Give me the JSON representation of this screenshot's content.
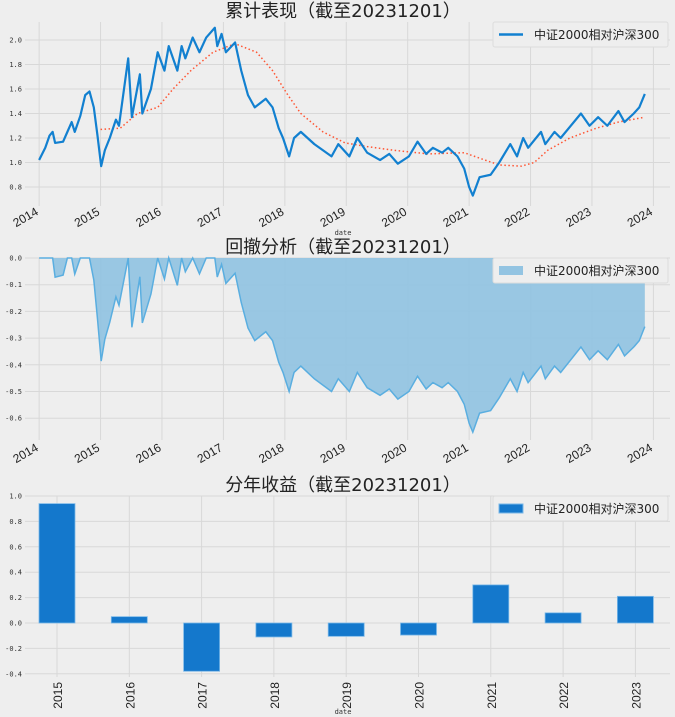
{
  "colors": {
    "line": "#1280d0",
    "ma": "#ff5533",
    "fill": "#93c4e2",
    "fill_line": "#5aaee0",
    "bar": "#1478cc",
    "bar_edge": "#7ab8e8",
    "grid": "#d8d8d8",
    "background": "#eeeeee"
  },
  "chart_data": [
    {
      "type": "line",
      "title": "累计表现（截至20231201）",
      "xlabel": "date",
      "ylabel": "",
      "xlim": [
        2013.77,
        2024.27
      ],
      "ylim": [
        0.66,
        2.16
      ],
      "x_ticks": [
        "2014",
        "2015",
        "2016",
        "2017",
        "2018",
        "2019",
        "2020",
        "2021",
        "2022",
        "2023",
        "2024"
      ],
      "y_ticks": [
        "0.8",
        "1.0",
        "1.2",
        "1.4",
        "1.6",
        "1.8",
        "2.0"
      ],
      "grid": true,
      "legend": {
        "position": "top-right",
        "entries": [
          "中证2000相对沪深300"
        ]
      },
      "series": [
        {
          "name": "中证2000相对沪深300",
          "style": "solid",
          "x": [
            2014.0,
            2014.1,
            2014.17,
            2014.22,
            2014.26,
            2014.39,
            2014.46,
            2014.53,
            2014.58,
            2014.67,
            2014.75,
            2014.82,
            2014.89,
            2014.95,
            2015.01,
            2015.07,
            2015.15,
            2015.25,
            2015.3,
            2015.45,
            2015.51,
            2015.64,
            2015.68,
            2015.82,
            2015.93,
            2016.04,
            2016.11,
            2016.25,
            2016.32,
            2016.38,
            2016.5,
            2016.61,
            2016.72,
            2016.86,
            2016.9,
            2016.97,
            2017.04,
            2017.19,
            2017.29,
            2017.4,
            2017.51,
            2017.69,
            2017.8,
            2017.9,
            2017.97,
            2018.07,
            2018.15,
            2018.26,
            2018.48,
            2018.76,
            2018.87,
            2019.05,
            2019.18,
            2019.34,
            2019.55,
            2019.7,
            2019.84,
            2020.02,
            2020.16,
            2020.3,
            2020.41,
            2020.56,
            2020.66,
            2020.81,
            2020.92,
            2021.0,
            2021.06,
            2021.17,
            2021.35,
            2021.49,
            2021.67,
            2021.78,
            2021.88,
            2021.96,
            2022.17,
            2022.24,
            2022.39,
            2022.49,
            2022.82,
            2022.96,
            2023.1,
            2023.25,
            2023.43,
            2023.53,
            2023.68,
            2023.77,
            2023.86
          ],
          "y": [
            1.02,
            1.12,
            1.22,
            1.25,
            1.16,
            1.17,
            1.25,
            1.33,
            1.25,
            1.38,
            1.55,
            1.58,
            1.45,
            1.22,
            0.97,
            1.1,
            1.2,
            1.35,
            1.3,
            1.85,
            1.37,
            1.72,
            1.4,
            1.6,
            1.9,
            1.75,
            1.95,
            1.75,
            1.95,
            1.85,
            2.02,
            1.9,
            2.02,
            2.1,
            1.95,
            2.05,
            1.9,
            1.98,
            1.75,
            1.55,
            1.45,
            1.52,
            1.45,
            1.28,
            1.2,
            1.05,
            1.2,
            1.25,
            1.15,
            1.05,
            1.15,
            1.05,
            1.2,
            1.08,
            1.02,
            1.07,
            0.99,
            1.05,
            1.17,
            1.07,
            1.12,
            1.08,
            1.12,
            1.05,
            0.95,
            0.8,
            0.73,
            0.88,
            0.9,
            1.0,
            1.15,
            1.05,
            1.2,
            1.12,
            1.25,
            1.15,
            1.25,
            1.2,
            1.4,
            1.3,
            1.37,
            1.3,
            1.42,
            1.33,
            1.4,
            1.45,
            1.56
          ]
        },
        {
          "name": "moving-average",
          "style": "dotted",
          "x": [
            2015.0,
            2015.32,
            2015.6,
            2015.93,
            2016.18,
            2016.47,
            2016.83,
            2017.19,
            2017.54,
            2017.8,
            2018.05,
            2018.26,
            2018.62,
            2018.98,
            2019.34,
            2019.77,
            2020.34,
            2020.92,
            2021.2,
            2021.49,
            2021.85,
            2022.06,
            2022.28,
            2022.64,
            2023.07,
            2023.43,
            2023.86
          ],
          "y": [
            1.27,
            1.28,
            1.4,
            1.45,
            1.6,
            1.75,
            1.9,
            1.97,
            1.9,
            1.75,
            1.55,
            1.4,
            1.25,
            1.16,
            1.13,
            1.1,
            1.07,
            1.08,
            1.03,
            0.98,
            0.97,
            1.0,
            1.1,
            1.2,
            1.28,
            1.33,
            1.37
          ]
        }
      ]
    },
    {
      "type": "area",
      "title": "回撤分析（截至20231201）",
      "xlabel": "",
      "xlim": [
        2013.77,
        2024.27
      ],
      "ylim": [
        -0.685,
        0.0
      ],
      "x_ticks": [
        "2014",
        "2015",
        "2016",
        "2017",
        "2018",
        "2019",
        "2020",
        "2021",
        "2022",
        "2023",
        "2024"
      ],
      "y_ticks": [
        "0.0",
        "-0.1",
        "-0.2",
        "-0.3",
        "-0.4",
        "-0.5",
        "-0.6"
      ],
      "grid": true,
      "legend": {
        "position": "top-right",
        "entries": [
          "中证2000相对沪深300"
        ]
      },
      "series_derivation": "drawdown of cumulative series: value / running max - 1"
    },
    {
      "type": "bar",
      "title": "分年收益（截至20231201）",
      "xlabel": "date",
      "ylim": [
        -0.41,
        1.0
      ],
      "categories": [
        "2015",
        "2016",
        "2017",
        "2018",
        "2019",
        "2020",
        "2021",
        "2022",
        "2023"
      ],
      "values": [
        0.94,
        0.05,
        -0.38,
        -0.11,
        -0.105,
        -0.095,
        0.3,
        0.08,
        0.21
      ],
      "y_ticks": [
        "1.0",
        "0.8",
        "0.6",
        "0.4",
        "0.2",
        "0.0",
        "-0.2",
        "-0.4"
      ],
      "grid": true,
      "legend": {
        "position": "top-right",
        "entries": [
          "中证2000相对沪深300"
        ]
      }
    }
  ]
}
